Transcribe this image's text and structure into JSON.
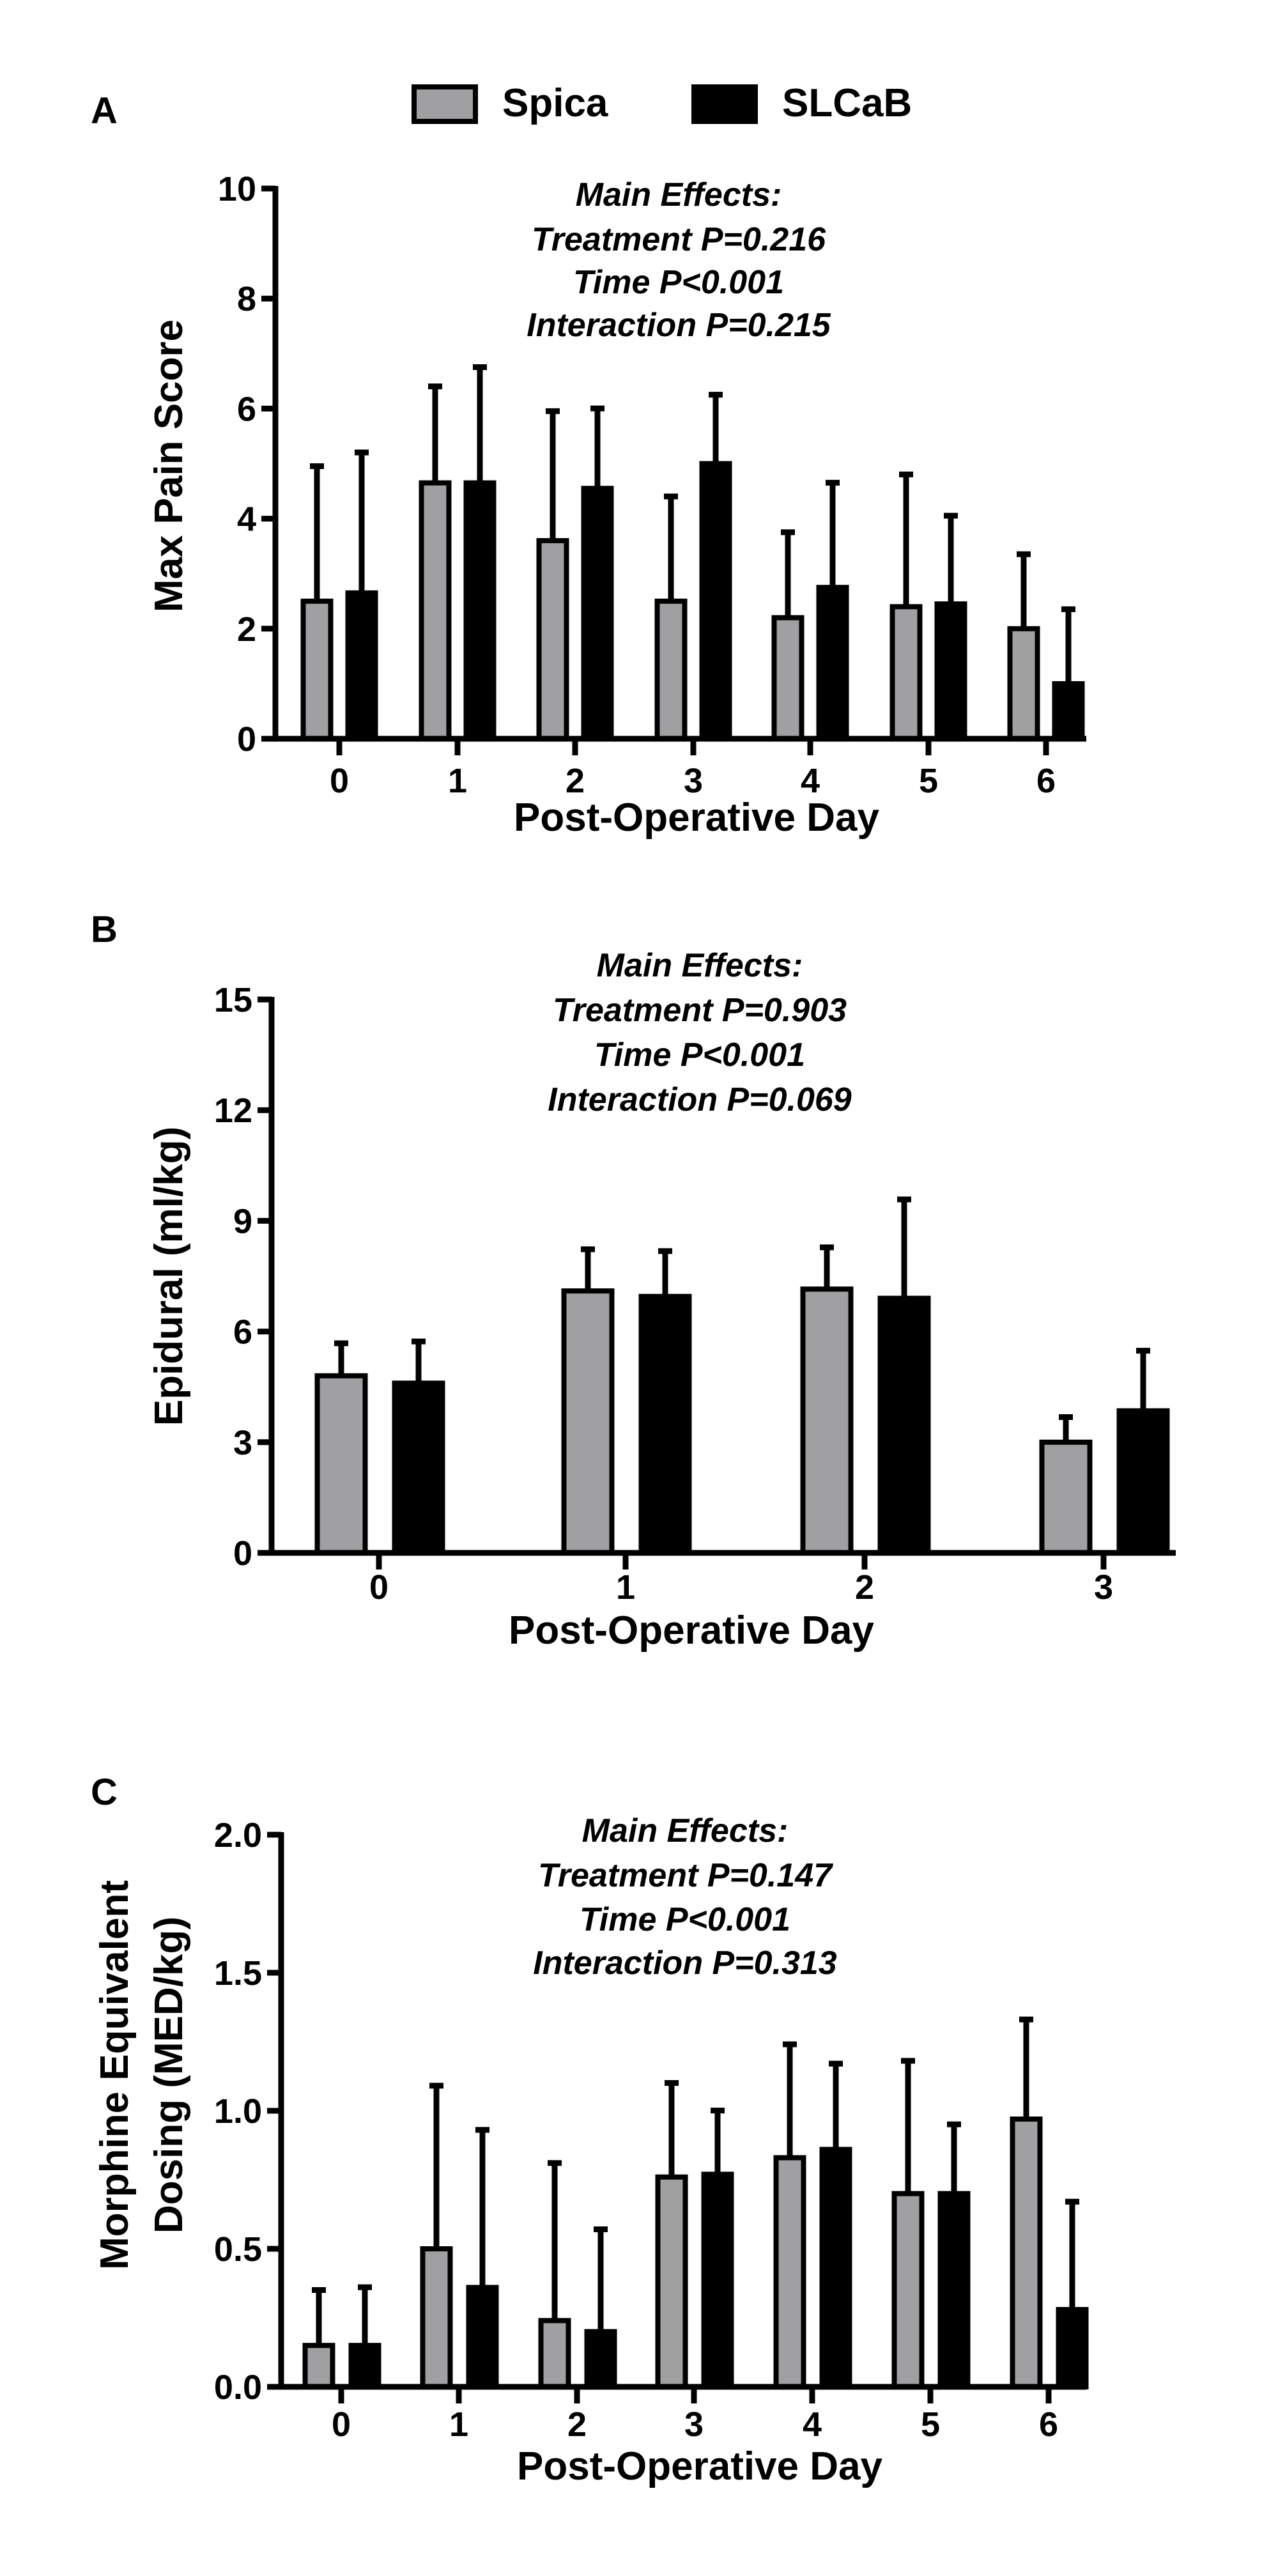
{
  "legend": {
    "items": [
      {
        "name": "Spica",
        "color": "#a0a0a2"
      },
      {
        "name": "SLCaB",
        "color": "#000000"
      }
    ]
  },
  "chart_data": [
    {
      "panel": "A",
      "type": "bar",
      "title": "",
      "xlabel": "Post-Operative Day",
      "ylabel": "Max Pain Score",
      "categories": [
        "0",
        "1",
        "2",
        "3",
        "4",
        "5",
        "6"
      ],
      "ylim": [
        0,
        10
      ],
      "yticks": [
        "0",
        "2",
        "4",
        "6",
        "8",
        "10"
      ],
      "annotation": [
        "Main Effects:",
        "Treatment P=0.216",
        "Time P<0.001",
        "Interaction P=0.215"
      ],
      "series": [
        {
          "name": "Spica",
          "values": [
            2.5,
            4.65,
            3.6,
            2.5,
            2.2,
            2.4,
            2.0
          ],
          "error_upper": [
            5.0,
            6.45,
            6.0,
            4.45,
            3.8,
            4.85,
            3.4
          ]
        },
        {
          "name": "SLCaB",
          "values": [
            2.65,
            4.65,
            4.55,
            5.0,
            2.75,
            2.45,
            1.0
          ],
          "error_upper": [
            5.25,
            6.8,
            6.05,
            6.3,
            4.7,
            4.1,
            2.4
          ]
        }
      ]
    },
    {
      "panel": "B",
      "type": "bar",
      "title": "",
      "xlabel": "Post-Operative Day",
      "ylabel": "Epidural (ml/kg)",
      "categories": [
        "0",
        "1",
        "2",
        "3"
      ],
      "ylim": [
        0,
        15
      ],
      "yticks": [
        "0",
        "3",
        "6",
        "9",
        "12",
        "15"
      ],
      "annotation": [
        "Main Effects:",
        "Treatment P=0.903",
        "Time P<0.001",
        "Interaction P=0.069"
      ],
      "series": [
        {
          "name": "Spica",
          "values": [
            4.8,
            7.1,
            7.15,
            3.0
          ],
          "error_upper": [
            5.75,
            8.3,
            8.35,
            3.75
          ]
        },
        {
          "name": "SLCaB",
          "values": [
            4.6,
            6.95,
            6.9,
            3.85
          ],
          "error_upper": [
            5.8,
            8.25,
            9.65,
            5.55
          ]
        }
      ]
    },
    {
      "panel": "C",
      "type": "bar",
      "title": "",
      "xlabel": "Post-Operative Day",
      "ylabel": [
        "Morphine Equivalent",
        "Dosing  (MED/kg)"
      ],
      "categories": [
        "0",
        "1",
        "2",
        "3",
        "4",
        "5",
        "6"
      ],
      "ylim": [
        0,
        2.0
      ],
      "yticks": [
        "0.0",
        "0.5",
        "1.0",
        "1.5",
        "2.0"
      ],
      "annotation": [
        "Main Effects:",
        "Treatment P=0.147",
        "Time P<0.001",
        "Interaction P=0.313"
      ],
      "series": [
        {
          "name": "Spica",
          "values": [
            0.15,
            0.5,
            0.24,
            0.76,
            0.83,
            0.7,
            0.97
          ],
          "error_upper": [
            0.36,
            1.1,
            0.82,
            1.11,
            1.25,
            1.19,
            1.34
          ]
        },
        {
          "name": "SLCaB",
          "values": [
            0.15,
            0.36,
            0.2,
            0.77,
            0.86,
            0.7,
            0.28
          ],
          "error_upper": [
            0.37,
            0.94,
            0.58,
            1.01,
            1.18,
            0.96,
            0.68
          ]
        }
      ]
    }
  ]
}
